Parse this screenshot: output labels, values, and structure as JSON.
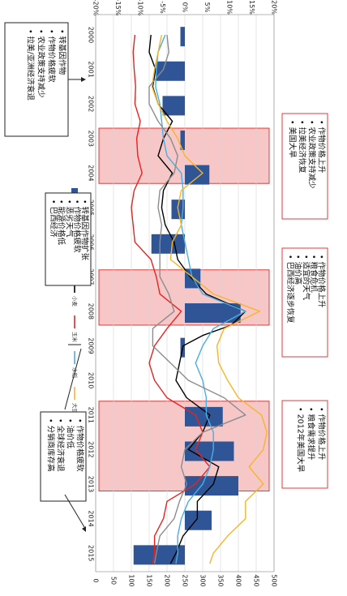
{
  "chart_data": {
    "type": "line",
    "orientation": "rotated-90-clockwise",
    "x": [
      2000,
      2001,
      2002,
      2003,
      2004,
      2005,
      2006,
      2007,
      2008,
      2009,
      2010,
      2011,
      2012,
      2013,
      2014,
      2015
    ],
    "x_ticks": [
      "2000",
      "2001",
      "2002",
      "2003",
      "2004",
      "2005",
      "2006",
      "2007",
      "2008",
      "2009",
      "2010",
      "2011",
      "2012",
      "2013",
      "2014",
      "2015"
    ],
    "left_axis": {
      "ylim": [
        0,
        500
      ],
      "ticks": [
        "0",
        "50",
        "100",
        "150",
        "200",
        "250",
        "300",
        "350",
        "400",
        "450",
        "500"
      ]
    },
    "right_axis": {
      "ylim": [
        -20,
        20
      ],
      "ticks": [
        "-20%",
        "-15%",
        "-10%",
        "-5%",
        "0%",
        "5%",
        "10%",
        "15%",
        "20%"
      ]
    },
    "bars": {
      "name": "全球種植市场变动比率(右)",
      "color": "#2f5597",
      "x": [
        2000,
        2001,
        2002,
        2003,
        2004,
        2005,
        2006,
        2007,
        2008,
        2009,
        2010,
        2011,
        2012,
        2013,
        2014,
        2015
      ],
      "values": [
        -1.0,
        -6.5,
        -5.0,
        -1.0,
        5.5,
        -3.0,
        -7.5,
        3.5,
        12.5,
        -1.0,
        0,
        8.5,
        11.0,
        12.0,
        6.0,
        -11.5
      ]
    },
    "series": [
      {
        "name": "小麦",
        "color": "#000000",
        "points": [
          [
            2000,
            155
          ],
          [
            2000.5,
            150
          ],
          [
            2001,
            168
          ],
          [
            2001.5,
            160
          ],
          [
            2002,
            175
          ],
          [
            2002.5,
            215
          ],
          [
            2003,
            190
          ],
          [
            2003.5,
            175
          ],
          [
            2004,
            215
          ],
          [
            2004.5,
            190
          ],
          [
            2005,
            185
          ],
          [
            2005.5,
            195
          ],
          [
            2006,
            220
          ],
          [
            2006.5,
            230
          ],
          [
            2007,
            265
          ],
          [
            2007.5,
            310
          ],
          [
            2008,
            420
          ],
          [
            2008.4,
            380
          ],
          [
            2008.7,
            300
          ],
          [
            2009,
            245
          ],
          [
            2009.5,
            235
          ],
          [
            2010,
            225
          ],
          [
            2010.5,
            255
          ],
          [
            2011,
            320
          ],
          [
            2011.5,
            300
          ],
          [
            2012,
            260
          ],
          [
            2012.5,
            345
          ],
          [
            2013,
            330
          ],
          [
            2013.5,
            285
          ],
          [
            2014,
            285
          ],
          [
            2014.5,
            245
          ],
          [
            2015,
            225
          ],
          [
            2015.3,
            210
          ]
        ]
      },
      {
        "name": "玉米",
        "color": "#e8231f",
        "points": [
          [
            2000,
            110
          ],
          [
            2000.5,
            105
          ],
          [
            2001,
            108
          ],
          [
            2001.5,
            112
          ],
          [
            2002,
            110
          ],
          [
            2002.5,
            125
          ],
          [
            2003,
            115
          ],
          [
            2003.5,
            118
          ],
          [
            2004,
            130
          ],
          [
            2004.5,
            108
          ],
          [
            2005,
            100
          ],
          [
            2005.5,
            105
          ],
          [
            2006,
            110
          ],
          [
            2006.5,
            155
          ],
          [
            2007,
            170
          ],
          [
            2007.5,
            180
          ],
          [
            2008,
            240
          ],
          [
            2008.5,
            200
          ],
          [
            2009,
            165
          ],
          [
            2009.5,
            150
          ],
          [
            2010,
            165
          ],
          [
            2010.5,
            200
          ],
          [
            2011,
            280
          ],
          [
            2011.5,
            300
          ],
          [
            2012,
            280
          ],
          [
            2012.5,
            320
          ],
          [
            2013,
            280
          ],
          [
            2013.5,
            200
          ],
          [
            2014,
            190
          ],
          [
            2014.5,
            165
          ],
          [
            2015,
            165
          ],
          [
            2015.3,
            160
          ]
        ]
      },
      {
        "name": "水稻",
        "color": "#4aaee0",
        "points": [
          [
            2000,
            195
          ],
          [
            2000.5,
            175
          ],
          [
            2001,
            170
          ],
          [
            2001.5,
            168
          ],
          [
            2002,
            180
          ],
          [
            2002.5,
            185
          ],
          [
            2003,
            190
          ],
          [
            2003.5,
            200
          ],
          [
            2004,
            240
          ],
          [
            2004.5,
            245
          ],
          [
            2005,
            245
          ],
          [
            2005.5,
            240
          ],
          [
            2006,
            250
          ],
          [
            2006.5,
            260
          ],
          [
            2007,
            270
          ],
          [
            2007.5,
            300
          ],
          [
            2008,
            420
          ],
          [
            2008.5,
            330
          ],
          [
            2009,
            300
          ],
          [
            2009.5,
            280
          ],
          [
            2010,
            300
          ],
          [
            2010.5,
            310
          ],
          [
            2011,
            310
          ],
          [
            2011.5,
            330
          ],
          [
            2012,
            330
          ],
          [
            2012.5,
            320
          ],
          [
            2013,
            300
          ],
          [
            2013.5,
            260
          ],
          [
            2014,
            240
          ],
          [
            2014.5,
            230
          ],
          [
            2015,
            230
          ],
          [
            2015.3,
            225
          ]
        ]
      },
      {
        "name": "大豆",
        "color": "#f6b527",
        "points": [
          [
            2000,
            185
          ],
          [
            2000.5,
            175
          ],
          [
            2001,
            165
          ],
          [
            2001.5,
            158
          ],
          [
            2002,
            175
          ],
          [
            2002.5,
            200
          ],
          [
            2003,
            230
          ],
          [
            2003.5,
            250
          ],
          [
            2004,
            300
          ],
          [
            2004.5,
            240
          ],
          [
            2005,
            230
          ],
          [
            2005.5,
            240
          ],
          [
            2006,
            215
          ],
          [
            2006.5,
            210
          ],
          [
            2007,
            270
          ],
          [
            2007.5,
            330
          ],
          [
            2008,
            460
          ],
          [
            2008.5,
            360
          ],
          [
            2009,
            340
          ],
          [
            2009.5,
            345
          ],
          [
            2010,
            370
          ],
          [
            2010.5,
            400
          ],
          [
            2011,
            465
          ],
          [
            2011.5,
            480
          ],
          [
            2012,
            470
          ],
          [
            2012.5,
            430
          ],
          [
            2013,
            470
          ],
          [
            2013.5,
            420
          ],
          [
            2014,
            420
          ],
          [
            2014.5,
            370
          ],
          [
            2015,
            330
          ],
          [
            2015.3,
            320
          ]
        ]
      },
      {
        "name": "棉花",
        "color": "#8c8c8c",
        "points": [
          [
            2000,
            200
          ],
          [
            2000.5,
            205
          ],
          [
            2001,
            190
          ],
          [
            2001.5,
            150
          ],
          [
            2002,
            150
          ],
          [
            2002.5,
            175
          ],
          [
            2003,
            210
          ],
          [
            2003.5,
            230
          ],
          [
            2004,
            220
          ],
          [
            2004.5,
            180
          ],
          [
            2005,
            175
          ],
          [
            2005.5,
            185
          ],
          [
            2006,
            180
          ],
          [
            2006.5,
            180
          ],
          [
            2007,
            180
          ],
          [
            2007.5,
            205
          ],
          [
            2008,
            220
          ],
          [
            2008.5,
            160
          ],
          [
            2009,
            160
          ],
          [
            2009.5,
            210
          ],
          [
            2010,
            260
          ],
          [
            2010.5,
            360
          ],
          [
            2011,
            420
          ],
          [
            2011.5,
            300
          ],
          [
            2012,
            250
          ],
          [
            2012.5,
            240
          ],
          [
            2013,
            255
          ],
          [
            2013.5,
            235
          ],
          [
            2014,
            220
          ],
          [
            2014.5,
            180
          ],
          [
            2015,
            170
          ],
          [
            2015.3,
            165
          ]
        ]
      }
    ],
    "highlight_periods": [
      [
        2002.7,
        2004.3
      ],
      [
        2006.8,
        2008.4
      ],
      [
        2010.6,
        2013.2
      ]
    ],
    "legend": [
      "全球種植市场变动比率(右)",
      "小麦",
      "玉米",
      "水稻",
      "大豆",
      "棉花"
    ],
    "legend_placement": "center (rotated)",
    "grid": true,
    "annotations": [
      {
        "items": [
          "转基因作物",
          "作物价格疲软",
          "农业政策支持减少",
          "拉美/亚洲经济衰退"
        ]
      },
      {
        "items": [
          "作物价格上升",
          "农业政策支持减少",
          "拉美经济恢复",
          "美国大旱"
        ]
      },
      {
        "items": [
          "转基因作物扩张",
          "作物价格疲软",
          "恶劣天气",
          "能源价格低",
          "巴西经济"
        ]
      },
      {
        "items": [
          "作物价格上升",
          "粮食危机",
          "适宜的天气",
          "油价高",
          "巴西经济逐步恢复"
        ]
      },
      {
        "items": [
          "作物价格上升",
          "粮食需求提升",
          "2012年美国大旱"
        ]
      },
      {
        "items": [
          "作物价格疲软",
          "油价低",
          "全球经济衰退",
          "分销商库存高"
        ]
      }
    ]
  }
}
